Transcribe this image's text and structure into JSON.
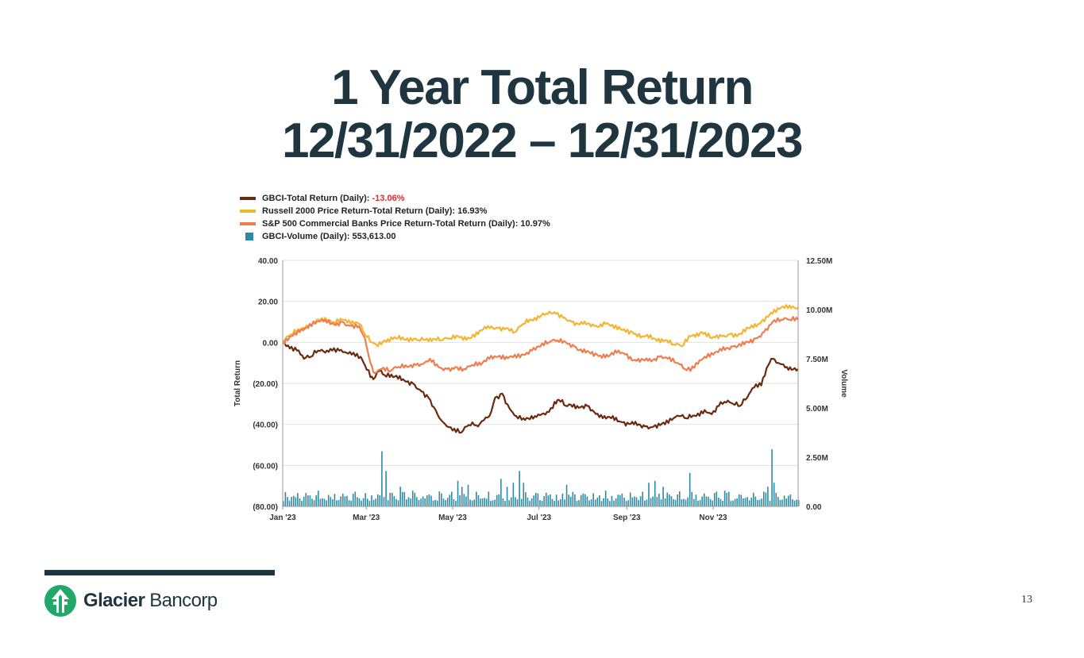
{
  "slide": {
    "title_line1": "1 Year Total Return",
    "title_line2": "12/31/2022 – 12/31/2023",
    "page_number": "13",
    "logo_word1": "Glacier",
    "logo_word2": "Bancorp",
    "brand_color": "#1f3640",
    "logo_color": "#22a86a"
  },
  "chart_data": {
    "type": "line",
    "xlabels": [
      "Jan '23",
      "Mar '23",
      "May '23",
      "Jul '23",
      "Sep '23",
      "Nov '23"
    ],
    "xlabel_days": [
      0,
      59,
      120,
      181,
      243,
      304
    ],
    "x_range_days": [
      0,
      364
    ],
    "yleft_label": "Total Return",
    "yleft_ticks": [
      "40.00",
      "20.00",
      "0.00",
      "(20.00)",
      "(40.00)",
      "(60.00)",
      "(80.00)"
    ],
    "yleft_range": [
      -80,
      40
    ],
    "yright_label": "Volume",
    "yright_ticks": [
      "12.50M",
      "10.00M",
      "7.50M",
      "5.00M",
      "2.50M",
      "0.00"
    ],
    "yright_range": [
      0,
      12.5
    ],
    "grid": true,
    "legend_position": "top-left",
    "legend": [
      {
        "text": "GBCI-Total Return (Daily): ",
        "value": "-13.06%",
        "value_color": "#d32f2f",
        "color": "#6b2a10",
        "marker": "line"
      },
      {
        "text": "Russell 2000 Price Return-Total Return (Daily): ",
        "value": "16.93%",
        "value_color": "#222222",
        "color": "#f2b632",
        "marker": "line"
      },
      {
        "text": "S&P 500 Commercial Banks Price Return-Total Return (Daily): ",
        "value": "10.97%",
        "value_color": "#222222",
        "color": "#ef7d4f",
        "marker": "line"
      },
      {
        "text": "GBCI-Volume (Daily): ",
        "value": "553,613.00",
        "value_color": "#222222",
        "color": "#2f8aa3",
        "marker": "square"
      }
    ],
    "series": [
      {
        "name": "GBCI-Total Return (Daily)",
        "color": "#6b2a10",
        "axis": "left",
        "points": [
          [
            0,
            0
          ],
          [
            5,
            -3
          ],
          [
            10,
            -4
          ],
          [
            15,
            -8
          ],
          [
            20,
            -7
          ],
          [
            25,
            -4
          ],
          [
            30,
            -5
          ],
          [
            35,
            -4
          ],
          [
            40,
            -4
          ],
          [
            45,
            -5
          ],
          [
            50,
            -5
          ],
          [
            55,
            -7
          ],
          [
            58,
            -11
          ],
          [
            62,
            -17
          ],
          [
            64,
            -18
          ],
          [
            68,
            -14
          ],
          [
            72,
            -16
          ],
          [
            78,
            -17
          ],
          [
            85,
            -18
          ],
          [
            92,
            -20
          ],
          [
            98,
            -24
          ],
          [
            103,
            -27
          ],
          [
            108,
            -33
          ],
          [
            112,
            -38
          ],
          [
            116,
            -41
          ],
          [
            120,
            -43
          ],
          [
            126,
            -44
          ],
          [
            130,
            -41
          ],
          [
            134,
            -39
          ],
          [
            138,
            -41
          ],
          [
            142,
            -38
          ],
          [
            146,
            -36
          ],
          [
            150,
            -27
          ],
          [
            155,
            -25
          ],
          [
            160,
            -32
          ],
          [
            165,
            -36
          ],
          [
            170,
            -37
          ],
          [
            178,
            -36
          ],
          [
            183,
            -35
          ],
          [
            188,
            -34
          ],
          [
            192,
            -29
          ],
          [
            195,
            -28
          ],
          [
            200,
            -31
          ],
          [
            208,
            -31
          ],
          [
            215,
            -31
          ],
          [
            220,
            -34
          ],
          [
            226,
            -37
          ],
          [
            232,
            -37
          ],
          [
            240,
            -39
          ],
          [
            248,
            -40
          ],
          [
            256,
            -41
          ],
          [
            262,
            -41
          ],
          [
            270,
            -40
          ],
          [
            276,
            -37
          ],
          [
            280,
            -36
          ],
          [
            285,
            -37
          ],
          [
            292,
            -36
          ],
          [
            298,
            -33
          ],
          [
            303,
            -35
          ],
          [
            308,
            -31
          ],
          [
            312,
            -29
          ],
          [
            318,
            -30
          ],
          [
            323,
            -31
          ],
          [
            328,
            -27
          ],
          [
            333,
            -22
          ],
          [
            338,
            -21
          ],
          [
            343,
            -11
          ],
          [
            346,
            -8
          ],
          [
            350,
            -10
          ],
          [
            356,
            -12
          ],
          [
            364,
            -13
          ]
        ]
      },
      {
        "name": "Russell 2000 Price Return-Total Return (Daily)",
        "color": "#f2b632",
        "axis": "left",
        "points": [
          [
            0,
            0
          ],
          [
            6,
            4
          ],
          [
            12,
            6
          ],
          [
            18,
            8
          ],
          [
            24,
            11
          ],
          [
            30,
            12
          ],
          [
            36,
            10
          ],
          [
            42,
            11
          ],
          [
            48,
            9
          ],
          [
            54,
            9
          ],
          [
            58,
            4
          ],
          [
            63,
            0
          ],
          [
            66,
            -1
          ],
          [
            72,
            1
          ],
          [
            80,
            2
          ],
          [
            88,
            2
          ],
          [
            96,
            1
          ],
          [
            104,
            2
          ],
          [
            112,
            1
          ],
          [
            118,
            2
          ],
          [
            124,
            3
          ],
          [
            132,
            2
          ],
          [
            138,
            4
          ],
          [
            145,
            8
          ],
          [
            152,
            7
          ],
          [
            158,
            7
          ],
          [
            164,
            5
          ],
          [
            170,
            9
          ],
          [
            178,
            12
          ],
          [
            186,
            14
          ],
          [
            193,
            14
          ],
          [
            198,
            12
          ],
          [
            204,
            10
          ],
          [
            212,
            9
          ],
          [
            220,
            8
          ],
          [
            228,
            9
          ],
          [
            234,
            7
          ],
          [
            240,
            6
          ],
          [
            247,
            5
          ],
          [
            254,
            3
          ],
          [
            262,
            2
          ],
          [
            270,
            1
          ],
          [
            276,
            -1
          ],
          [
            282,
            -2
          ],
          [
            288,
            3
          ],
          [
            296,
            5
          ],
          [
            303,
            2
          ],
          [
            310,
            3
          ],
          [
            316,
            4
          ],
          [
            322,
            4
          ],
          [
            330,
            7
          ],
          [
            338,
            10
          ],
          [
            346,
            14
          ],
          [
            352,
            17
          ],
          [
            358,
            18
          ],
          [
            364,
            17
          ]
        ]
      },
      {
        "name": "S&P 500 Commercial Banks Price Return-Total Return (Daily)",
        "color": "#ef7d4f",
        "axis": "left",
        "points": [
          [
            0,
            0
          ],
          [
            6,
            3
          ],
          [
            12,
            5
          ],
          [
            18,
            7
          ],
          [
            24,
            10
          ],
          [
            30,
            11
          ],
          [
            36,
            9
          ],
          [
            42,
            10
          ],
          [
            48,
            8
          ],
          [
            54,
            8
          ],
          [
            58,
            2
          ],
          [
            62,
            -10
          ],
          [
            65,
            -15
          ],
          [
            70,
            -13
          ],
          [
            76,
            -14
          ],
          [
            82,
            -12
          ],
          [
            88,
            -12
          ],
          [
            94,
            -11
          ],
          [
            100,
            -10
          ],
          [
            104,
            -8
          ],
          [
            110,
            -12
          ],
          [
            116,
            -13
          ],
          [
            122,
            -12
          ],
          [
            128,
            -13
          ],
          [
            134,
            -11
          ],
          [
            140,
            -11
          ],
          [
            146,
            -8
          ],
          [
            152,
            -7
          ],
          [
            158,
            -7
          ],
          [
            164,
            -6
          ],
          [
            170,
            -6
          ],
          [
            176,
            -4
          ],
          [
            182,
            -2
          ],
          [
            188,
            0
          ],
          [
            194,
            1
          ],
          [
            200,
            0
          ],
          [
            206,
            -2
          ],
          [
            214,
            -5
          ],
          [
            222,
            -6
          ],
          [
            230,
            -7
          ],
          [
            236,
            -5
          ],
          [
            242,
            -6
          ],
          [
            250,
            -9
          ],
          [
            258,
            -9
          ],
          [
            266,
            -7
          ],
          [
            272,
            -8
          ],
          [
            278,
            -10
          ],
          [
            284,
            -13
          ],
          [
            288,
            -14
          ],
          [
            292,
            -10
          ],
          [
            298,
            -7
          ],
          [
            304,
            -6
          ],
          [
            310,
            -4
          ],
          [
            318,
            -2
          ],
          [
            326,
            -1
          ],
          [
            334,
            2
          ],
          [
            340,
            5
          ],
          [
            346,
            10
          ],
          [
            352,
            11
          ],
          [
            358,
            11
          ],
          [
            364,
            11
          ]
        ]
      },
      {
        "name": "GBCI-Volume (Daily)",
        "color": "#2f8aa3",
        "axis": "right",
        "type": "bar",
        "baseline_millions": 0.55,
        "spikes": [
          [
            25,
            0.8
          ],
          [
            60,
            0.9
          ],
          [
            70,
            2.8
          ],
          [
            73,
            1.8
          ],
          [
            76,
            1.6
          ],
          [
            79,
            1.2
          ],
          [
            83,
            1.0
          ],
          [
            91,
            0.8
          ],
          [
            108,
            0.9
          ],
          [
            118,
            0.9
          ],
          [
            123,
            1.3
          ],
          [
            126,
            1.0
          ],
          [
            131,
            1.1
          ],
          [
            134,
            1.6
          ],
          [
            154,
            1.4
          ],
          [
            158,
            1.0
          ],
          [
            162,
            1.2
          ],
          [
            167,
            1.8
          ],
          [
            170,
            1.2
          ],
          [
            182,
            1.0
          ],
          [
            200,
            1.1
          ],
          [
            208,
            1.3
          ],
          [
            228,
            0.8
          ],
          [
            250,
            1.7
          ],
          [
            258,
            1.2
          ],
          [
            262,
            1.3
          ],
          [
            268,
            1.0
          ],
          [
            287,
            1.7
          ],
          [
            298,
            1.0
          ],
          [
            312,
            0.8
          ],
          [
            342,
            1.0
          ],
          [
            345,
            2.9
          ],
          [
            347,
            1.2
          ],
          [
            350,
            1.0
          ]
        ]
      }
    ]
  }
}
